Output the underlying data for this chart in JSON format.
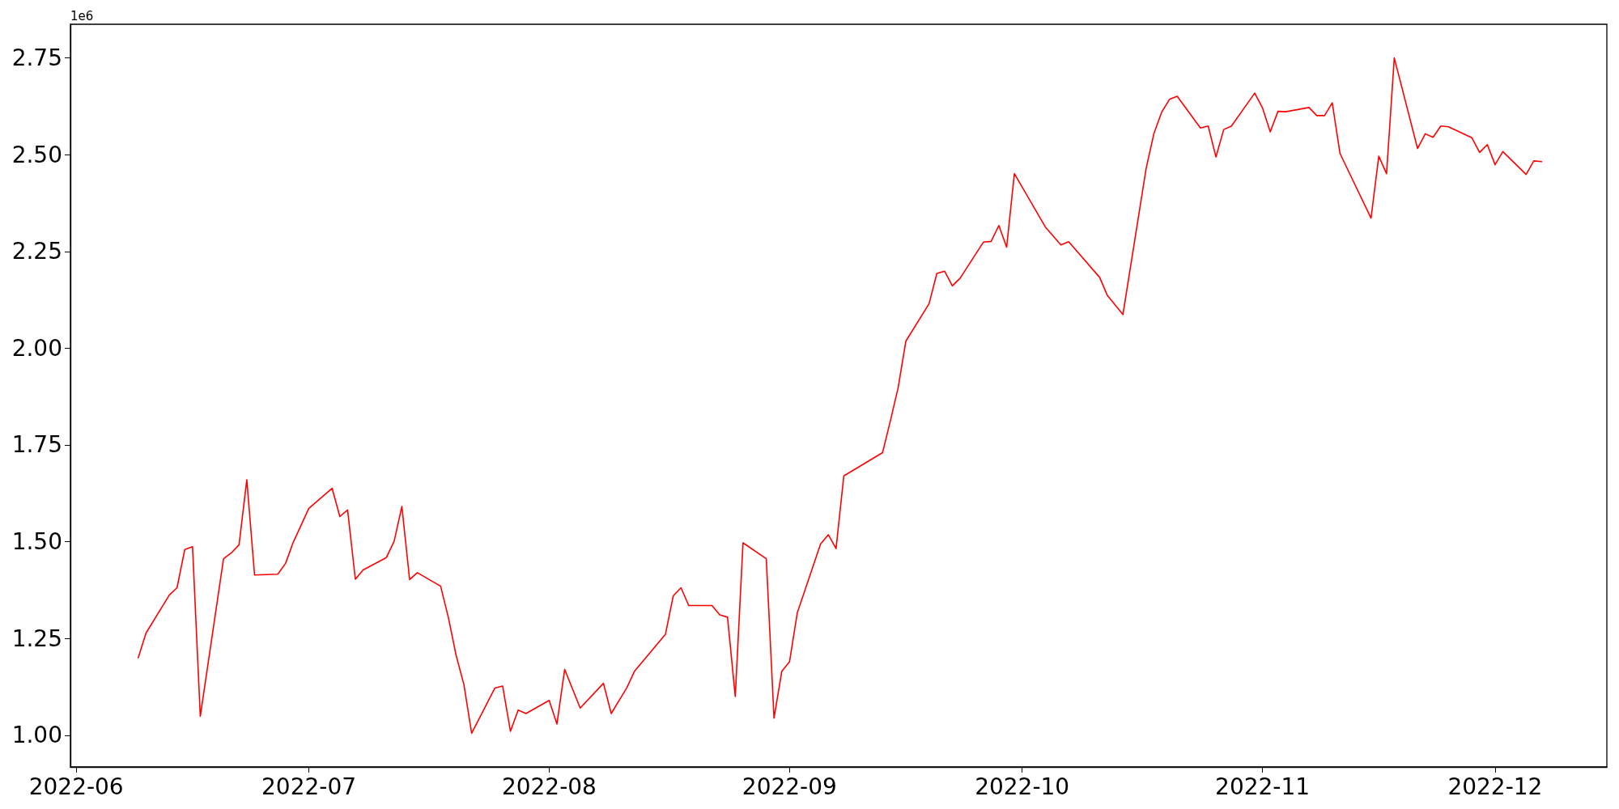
{
  "chart_data": {
    "type": "line",
    "annotations": [
      "1e6"
    ],
    "color": "#ff0000",
    "marker": "none",
    "line_style": "solid",
    "grid": false,
    "x": [
      "2022-06-09",
      "2022-06-10",
      "2022-06-13",
      "2022-06-14",
      "2022-06-15",
      "2022-06-16",
      "2022-06-17",
      "2022-06-20",
      "2022-06-21",
      "2022-06-22",
      "2022-06-23",
      "2022-06-24",
      "2022-06-27",
      "2022-06-28",
      "2022-06-29",
      "2022-07-01",
      "2022-07-04",
      "2022-07-05",
      "2022-07-06",
      "2022-07-07",
      "2022-07-08",
      "2022-07-11",
      "2022-07-12",
      "2022-07-13",
      "2022-07-14",
      "2022-07-15",
      "2022-07-18",
      "2022-07-19",
      "2022-07-20",
      "2022-07-21",
      "2022-07-22",
      "2022-07-25",
      "2022-07-26",
      "2022-07-27",
      "2022-07-28",
      "2022-07-29",
      "2022-08-01",
      "2022-08-02",
      "2022-08-03",
      "2022-08-05",
      "2022-08-08",
      "2022-08-09",
      "2022-08-10",
      "2022-08-11",
      "2022-08-12",
      "2022-08-16",
      "2022-08-17",
      "2022-08-18",
      "2022-08-19",
      "2022-08-22",
      "2022-08-23",
      "2022-08-24",
      "2022-08-25",
      "2022-08-26",
      "2022-08-29",
      "2022-08-30",
      "2022-08-31",
      "2022-09-01",
      "2022-09-02",
      "2022-09-05",
      "2022-09-06",
      "2022-09-07",
      "2022-09-08",
      "2022-09-13",
      "2022-09-14",
      "2022-09-15",
      "2022-09-16",
      "2022-09-19",
      "2022-09-20",
      "2022-09-21",
      "2022-09-22",
      "2022-09-23",
      "2022-09-26",
      "2022-09-27",
      "2022-09-28",
      "2022-09-29",
      "2022-09-30",
      "2022-10-04",
      "2022-10-06",
      "2022-10-07",
      "2022-10-11",
      "2022-10-12",
      "2022-10-14",
      "2022-10-17",
      "2022-10-18",
      "2022-10-19",
      "2022-10-20",
      "2022-10-21",
      "2022-10-24",
      "2022-10-25",
      "2022-10-26",
      "2022-10-27",
      "2022-10-28",
      "2022-10-31",
      "2022-11-01",
      "2022-11-02",
      "2022-11-03",
      "2022-11-04",
      "2022-11-07",
      "2022-11-08",
      "2022-11-09",
      "2022-11-10",
      "2022-11-11",
      "2022-11-15",
      "2022-11-16",
      "2022-11-17",
      "2022-11-18",
      "2022-11-21",
      "2022-11-22",
      "2022-11-23",
      "2022-11-24",
      "2022-11-25",
      "2022-11-28",
      "2022-11-29",
      "2022-11-30",
      "2022-12-01",
      "2022-12-02",
      "2022-12-05",
      "2022-12-06",
      "2022-12-07"
    ],
    "values": [
      1.2,
      1.264,
      1.362,
      1.381,
      1.48,
      1.487,
      1.049,
      1.456,
      1.471,
      1.492,
      1.66,
      1.414,
      1.416,
      1.444,
      1.499,
      1.586,
      1.638,
      1.565,
      1.582,
      1.403,
      1.427,
      1.459,
      1.501,
      1.591,
      1.402,
      1.42,
      1.385,
      1.304,
      1.206,
      1.131,
      1.005,
      1.122,
      1.127,
      1.01,
      1.065,
      1.056,
      1.09,
      1.029,
      1.17,
      1.07,
      1.134,
      1.056,
      1.089,
      1.122,
      1.165,
      1.261,
      1.36,
      1.381,
      1.335,
      1.335,
      1.311,
      1.305,
      1.1,
      1.497,
      1.456,
      1.044,
      1.165,
      1.19,
      1.316,
      1.494,
      1.518,
      1.482,
      1.67,
      1.73,
      1.812,
      1.897,
      2.018,
      2.115,
      2.193,
      2.199,
      2.161,
      2.181,
      2.274,
      2.276,
      2.317,
      2.261,
      2.451,
      2.313,
      2.267,
      2.275,
      2.183,
      2.136,
      2.087,
      2.465,
      2.555,
      2.61,
      2.643,
      2.651,
      2.569,
      2.574,
      2.494,
      2.565,
      2.574,
      2.659,
      2.621,
      2.559,
      2.612,
      2.611,
      2.622,
      2.601,
      2.601,
      2.634,
      2.503,
      2.336,
      2.496,
      2.451,
      2.75,
      2.516,
      2.554,
      2.545,
      2.574,
      2.572,
      2.544,
      2.506,
      2.526,
      2.474,
      2.508,
      2.449,
      2.484,
      2.482
    ],
    "xlim": [
      "2022-05-31T06:00",
      "2022-12-15T10:00"
    ],
    "xticks": [
      "2022-06",
      "2022-07",
      "2022-08",
      "2022-09",
      "2022-10",
      "2022-11",
      "2022-12"
    ],
    "ylim": [
      0.918,
      2.837
    ],
    "yticks": [
      {
        "value": 1,
        "label": "1.00"
      },
      {
        "value": 1.25,
        "label": "1.25"
      },
      {
        "value": 1.5,
        "label": "1.50"
      },
      {
        "value": 1.75,
        "label": "1.75"
      },
      {
        "value": 2,
        "label": "2.00"
      },
      {
        "value": 2.25,
        "label": "2.25"
      },
      {
        "value": 2.5,
        "label": "2.50"
      },
      {
        "value": 2.75,
        "label": "2.75"
      }
    ]
  }
}
